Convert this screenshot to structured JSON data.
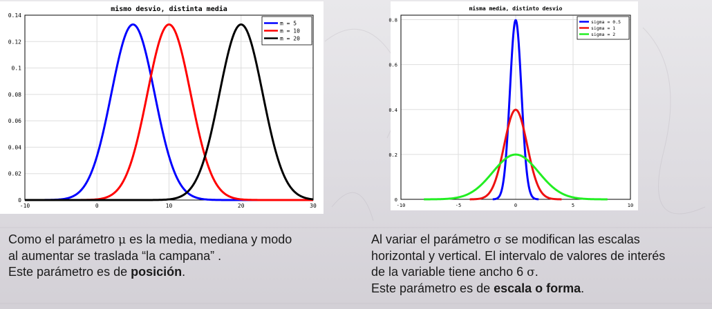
{
  "chart_data": [
    {
      "type": "line",
      "title": "mismo desvio, distinta media",
      "xlabel": "",
      "ylabel": "",
      "xlim": [
        -10,
        30
      ],
      "ylim": [
        0,
        0.14
      ],
      "xticks": [
        -10,
        0,
        10,
        20,
        30
      ],
      "yticks": [
        0,
        0.02,
        0.04,
        0.06,
        0.08,
        0.1,
        0.12,
        0.14
      ],
      "ytick_labels": [
        "0",
        "0.02",
        "0.04",
        "0.06",
        "0.08",
        "0.1",
        "0.12",
        "0.14"
      ],
      "xtick_labels": [
        "-10",
        "0",
        "10",
        "20",
        "30"
      ],
      "grid": true,
      "legend_position": "top-right",
      "series": [
        {
          "name": "m = 5",
          "distribution": "normal",
          "mean": 5,
          "sd": 3,
          "x_range": [
            -10,
            30
          ],
          "color": "#0000ff"
        },
        {
          "name": "m = 10",
          "distribution": "normal",
          "mean": 10,
          "sd": 3,
          "x_range": [
            -10,
            30
          ],
          "color": "#ff0000"
        },
        {
          "name": "m = 20",
          "distribution": "normal",
          "mean": 20,
          "sd": 3,
          "x_range": [
            -10,
            30
          ],
          "color": "#000000"
        }
      ]
    },
    {
      "type": "line",
      "title": "misma media, distinto desvio",
      "xlabel": "",
      "ylabel": "",
      "xlim": [
        -10,
        10
      ],
      "ylim": [
        0,
        0.82
      ],
      "xticks": [
        -10,
        -5,
        0,
        5,
        10
      ],
      "yticks": [
        0,
        0.2,
        0.4,
        0.6,
        0.8
      ],
      "ytick_labels": [
        "0",
        "0.2",
        "0.4",
        "0.6",
        "0.8"
      ],
      "xtick_labels": [
        "-10",
        "-5",
        "0",
        "5",
        "10"
      ],
      "grid": true,
      "legend_position": "top-right",
      "series": [
        {
          "name": "sigma = 0.5",
          "distribution": "normal",
          "mean": 0,
          "sd": 0.5,
          "x_range": [
            -2,
            2
          ],
          "color": "#0000ff"
        },
        {
          "name": "sigma = 1",
          "distribution": "normal",
          "mean": 0,
          "sd": 1,
          "x_range": [
            -4,
            4
          ],
          "color": "#ee1111"
        },
        {
          "name": "sigma = 2",
          "distribution": "normal",
          "mean": 0,
          "sd": 2,
          "x_range": [
            -8,
            8
          ],
          "color": "#22ee22"
        }
      ]
    }
  ],
  "captions": {
    "left": {
      "line1_a": "Como el parámetro ",
      "mu": "μ",
      "line1_b": " es la media, mediana y modo",
      "line2": "al aumentar se traslada “la campana” .",
      "line3_a": "Este parámetro es de ",
      "line3_bold": "posición",
      "line3_b": "."
    },
    "right": {
      "line1_a": "Al variar el parámetro ",
      "sigma": "σ",
      "line1_b": " se modifican las escalas",
      "line2": "horizontal y vertical. El intervalo de valores de interés",
      "line3_a": "de la variable tiene ancho  6 ",
      "line3_sigma": "σ",
      "line3_b": ".",
      "line4_a": "Este parámetro es de ",
      "line4_bold": "escala o forma",
      "line4_b": "."
    }
  }
}
